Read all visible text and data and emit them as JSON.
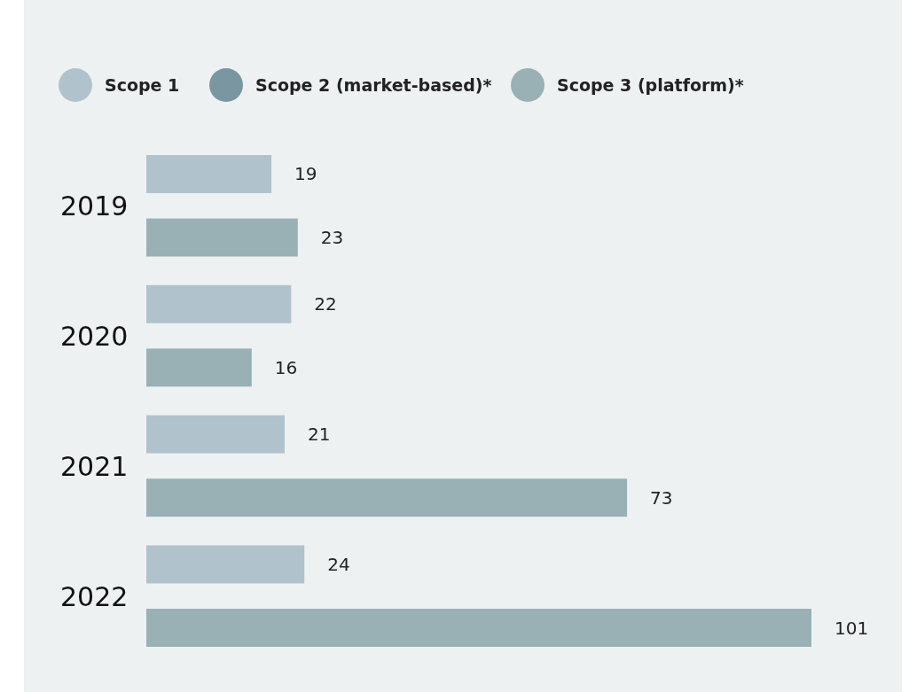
{
  "chart_data": {
    "type": "bar",
    "orientation": "horizontal",
    "categories": [
      "2019",
      "2020",
      "2021",
      "2022"
    ],
    "series": [
      {
        "name": "Scope 1",
        "color": "#b0c2cb",
        "values": [
          19,
          22,
          21,
          24
        ]
      },
      {
        "name": "Scope 2 (market-based)*",
        "color": "#7a96a0",
        "values": [
          null,
          null,
          null,
          null
        ]
      },
      {
        "name": "Scope 3 (platform)*",
        "color": "#99b1b5",
        "values": [
          23,
          16,
          73,
          101
        ]
      }
    ],
    "data_labels": true,
    "legend": "top left"
  }
}
